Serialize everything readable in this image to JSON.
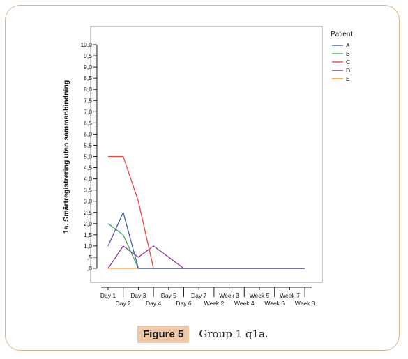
{
  "figure": {
    "label": "Figure 5",
    "caption": "Group 1 q1a."
  },
  "chart_data": {
    "type": "line",
    "ylabel": "1a. Smärtregistrering utan sammanbindning",
    "xlabel": "",
    "legend_title": "Patient",
    "legend_position": "right",
    "grid": false,
    "ylim": [
      0,
      10
    ],
    "yticks": [
      "10,0",
      "9,5",
      "9,0",
      "8,5",
      "8,0",
      "7,5",
      "7,0",
      "6,5",
      "6,0",
      "5,5",
      "5,0",
      "4,5",
      "4,0",
      "3,5",
      "3,0",
      "2,5",
      "2,0",
      "1,5",
      "1,0",
      ",5",
      ",0"
    ],
    "categories": [
      "Day 1",
      "Day 2",
      "Day 3",
      "Day 4",
      "Day 5",
      "Day 6",
      "Day 7",
      "Week 2",
      "Week 3",
      "Week 4",
      "Week 5",
      "Week 6",
      "Week 7",
      "Week 8"
    ],
    "series": [
      {
        "name": "A",
        "color": "#4a5fa8",
        "values": [
          1.0,
          2.5,
          0.0,
          0,
          0,
          0,
          0,
          0,
          0,
          0,
          0,
          0,
          0,
          0
        ]
      },
      {
        "name": "B",
        "color": "#3fa857",
        "values": [
          2.0,
          1.5,
          0.0,
          0,
          0,
          0,
          0,
          0,
          0,
          0,
          0,
          0,
          0,
          0
        ]
      },
      {
        "name": "C",
        "color": "#e8473f",
        "values": [
          5.0,
          5.0,
          3.0,
          0.0,
          0,
          0,
          0,
          0,
          0,
          0,
          0,
          0,
          0,
          0
        ]
      },
      {
        "name": "D",
        "color": "#8b3c96",
        "values": [
          0.0,
          1.0,
          0.5,
          1.0,
          0.5,
          0.0,
          0,
          0,
          0,
          0,
          0,
          0,
          0,
          0
        ]
      },
      {
        "name": "E",
        "color": "#f0962e",
        "values": [
          0,
          0,
          0,
          0,
          0,
          0,
          0,
          0,
          0,
          0,
          0,
          0,
          0,
          0
        ]
      }
    ]
  }
}
